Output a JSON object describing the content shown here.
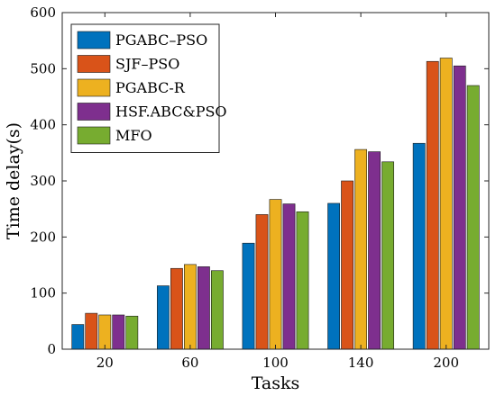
{
  "chart_data": {
    "type": "bar",
    "title": "",
    "xlabel": "Tasks",
    "ylabel": "Time delay(s)",
    "ylim": [
      0,
      600
    ],
    "yticks": [
      0,
      100,
      200,
      300,
      400,
      500,
      600
    ],
    "categories": [
      "20",
      "60",
      "100",
      "140",
      "200"
    ],
    "legend_position": "top-left",
    "grid": false,
    "series": [
      {
        "name": "PGABC–PSO",
        "color": "#0072BD",
        "values": [
          44,
          113,
          189,
          260,
          367
        ]
      },
      {
        "name": "SJF–PSO",
        "color": "#D95319",
        "values": [
          64,
          144,
          240,
          300,
          513
        ]
      },
      {
        "name": "PGABC-R",
        "color": "#EDB120",
        "values": [
          61,
          151,
          267,
          356,
          519
        ]
      },
      {
        "name": "HSF.ABC&PSO",
        "color": "#7E2F8E",
        "values": [
          61,
          147,
          259,
          352,
          505
        ]
      },
      {
        "name": "MFO",
        "color": "#77AC30",
        "values": [
          59,
          140,
          245,
          334,
          470
        ]
      }
    ]
  }
}
